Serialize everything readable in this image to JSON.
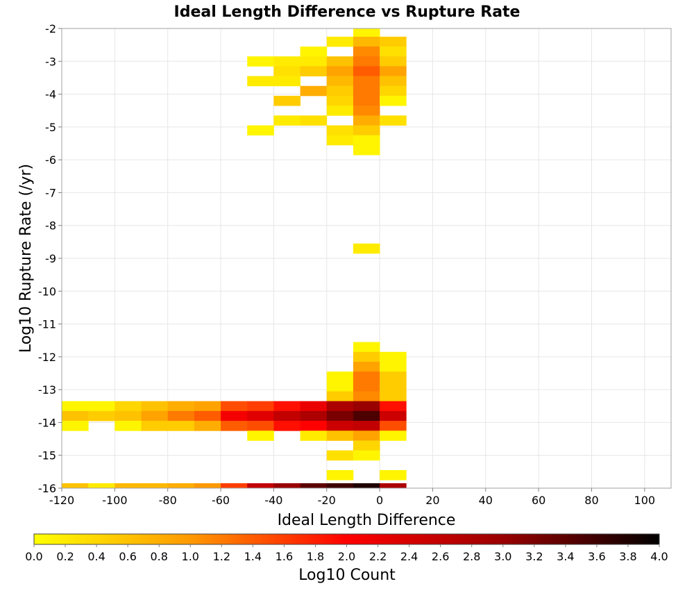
{
  "chart_data": {
    "type": "heatmap",
    "title": "Ideal Length Difference vs Rupture Rate",
    "xlabel": "Ideal Length Difference",
    "ylabel": "Log10 Rupture Rate (/yr)",
    "xlim": [
      -120,
      110
    ],
    "ylim": [
      -16,
      -2
    ],
    "x_ticks": [
      -120,
      -100,
      -80,
      -60,
      -40,
      -20,
      0,
      20,
      40,
      60,
      80,
      100
    ],
    "y_ticks": [
      -2,
      -3,
      -4,
      -5,
      -6,
      -7,
      -8,
      -9,
      -10,
      -11,
      -12,
      -13,
      -14,
      -15,
      -16
    ],
    "x_bin_width": 10,
    "y_bin_height": 0.3,
    "grid": true,
    "colorbar": {
      "label": "Log10 Count",
      "range": [
        0.0,
        4.0
      ],
      "ticks": [
        "0.0",
        "0.2",
        "0.4",
        "0.6",
        "0.8",
        "1.0",
        "1.2",
        "1.4",
        "1.6",
        "1.8",
        "2.0",
        "2.2",
        "2.4",
        "2.6",
        "2.8",
        "3.0",
        "3.2",
        "3.4",
        "3.6",
        "3.8",
        "4.0"
      ],
      "colors": [
        "#ffff00",
        "#ff9900",
        "#ff0000",
        "#990000",
        "#000000"
      ]
    },
    "cells": [
      {
        "x": -10,
        "y": -2.1,
        "v": 0.1
      },
      {
        "x": -20,
        "y": -2.4,
        "v": 0.2
      },
      {
        "x": -10,
        "y": -2.4,
        "v": 0.7
      },
      {
        "x": 0,
        "y": -2.4,
        "v": 0.5
      },
      {
        "x": -30,
        "y": -2.7,
        "v": 0.1
      },
      {
        "x": -10,
        "y": -2.7,
        "v": 1.1
      },
      {
        "x": 0,
        "y": -2.7,
        "v": 0.3
      },
      {
        "x": -50,
        "y": -3.0,
        "v": 0.1
      },
      {
        "x": -40,
        "y": -3.0,
        "v": 0.2
      },
      {
        "x": -30,
        "y": -3.0,
        "v": 0.2
      },
      {
        "x": -20,
        "y": -3.0,
        "v": 0.6
      },
      {
        "x": -10,
        "y": -3.0,
        "v": 1.2
      },
      {
        "x": 0,
        "y": -3.0,
        "v": 0.5
      },
      {
        "x": -40,
        "y": -3.3,
        "v": 0.3
      },
      {
        "x": -30,
        "y": -3.3,
        "v": 0.5
      },
      {
        "x": -20,
        "y": -3.3,
        "v": 0.9
      },
      {
        "x": -10,
        "y": -3.3,
        "v": 1.4
      },
      {
        "x": 0,
        "y": -3.3,
        "v": 0.9
      },
      {
        "x": -50,
        "y": -3.6,
        "v": 0.2
      },
      {
        "x": -40,
        "y": -3.6,
        "v": 0.2
      },
      {
        "x": -20,
        "y": -3.6,
        "v": 0.7
      },
      {
        "x": -10,
        "y": -3.6,
        "v": 1.2
      },
      {
        "x": 0,
        "y": -3.6,
        "v": 0.6
      },
      {
        "x": -30,
        "y": -3.9,
        "v": 0.8
      },
      {
        "x": -20,
        "y": -3.9,
        "v": 0.5
      },
      {
        "x": -10,
        "y": -3.9,
        "v": 1.2
      },
      {
        "x": 0,
        "y": -3.9,
        "v": 0.4
      },
      {
        "x": -40,
        "y": -4.2,
        "v": 0.5
      },
      {
        "x": -20,
        "y": -4.2,
        "v": 0.4
      },
      {
        "x": -10,
        "y": -4.2,
        "v": 1.2
      },
      {
        "x": 0,
        "y": -4.2,
        "v": 0.1
      },
      {
        "x": -20,
        "y": -4.5,
        "v": 0.2
      },
      {
        "x": -10,
        "y": -4.5,
        "v": 1.1
      },
      {
        "x": -40,
        "y": -4.8,
        "v": 0.2
      },
      {
        "x": -30,
        "y": -4.8,
        "v": 0.3
      },
      {
        "x": -10,
        "y": -4.8,
        "v": 0.8
      },
      {
        "x": 0,
        "y": -4.8,
        "v": 0.3
      },
      {
        "x": -50,
        "y": -5.1,
        "v": 0.1
      },
      {
        "x": -20,
        "y": -5.1,
        "v": 0.3
      },
      {
        "x": -10,
        "y": -5.1,
        "v": 0.5
      },
      {
        "x": -20,
        "y": -5.4,
        "v": 0.2
      },
      {
        "x": -10,
        "y": -5.4,
        "v": 0.1
      },
      {
        "x": -10,
        "y": -5.7,
        "v": 0.1
      },
      {
        "x": -10,
        "y": -8.7,
        "v": 0.2
      },
      {
        "x": -10,
        "y": -11.7,
        "v": 0.1
      },
      {
        "x": -10,
        "y": -12.0,
        "v": 0.5
      },
      {
        "x": 0,
        "y": -12.0,
        "v": 0.1
      },
      {
        "x": -10,
        "y": -12.3,
        "v": 0.9
      },
      {
        "x": 0,
        "y": -12.3,
        "v": 0.1
      },
      {
        "x": -20,
        "y": -12.6,
        "v": 0.1
      },
      {
        "x": -10,
        "y": -12.6,
        "v": 1.2
      },
      {
        "x": 0,
        "y": -12.6,
        "v": 0.5
      },
      {
        "x": -20,
        "y": -12.9,
        "v": 0.1
      },
      {
        "x": -10,
        "y": -12.9,
        "v": 1.2
      },
      {
        "x": 0,
        "y": -12.9,
        "v": 0.5
      },
      {
        "x": -20,
        "y": -13.2,
        "v": 0.5
      },
      {
        "x": -10,
        "y": -13.2,
        "v": 1.1
      },
      {
        "x": 0,
        "y": -13.2,
        "v": 0.5
      },
      {
        "x": -120,
        "y": -13.5,
        "v": 0.1
      },
      {
        "x": -110,
        "y": -13.5,
        "v": 0.1
      },
      {
        "x": -100,
        "y": -13.5,
        "v": 0.4
      },
      {
        "x": -90,
        "y": -13.5,
        "v": 0.6
      },
      {
        "x": -80,
        "y": -13.5,
        "v": 0.8
      },
      {
        "x": -70,
        "y": -13.5,
        "v": 0.9
      },
      {
        "x": -60,
        "y": -13.5,
        "v": 1.5
      },
      {
        "x": -50,
        "y": -13.5,
        "v": 1.6
      },
      {
        "x": -40,
        "y": -13.5,
        "v": 1.9
      },
      {
        "x": -30,
        "y": -13.5,
        "v": 2.2
      },
      {
        "x": -20,
        "y": -13.5,
        "v": 2.8
      },
      {
        "x": -10,
        "y": -13.5,
        "v": 3.0
      },
      {
        "x": 0,
        "y": -13.5,
        "v": 1.9
      },
      {
        "x": -120,
        "y": -13.8,
        "v": 0.6
      },
      {
        "x": -110,
        "y": -13.8,
        "v": 0.5
      },
      {
        "x": -100,
        "y": -13.8,
        "v": 0.6
      },
      {
        "x": -90,
        "y": -13.8,
        "v": 0.9
      },
      {
        "x": -80,
        "y": -13.8,
        "v": 1.2
      },
      {
        "x": -70,
        "y": -13.8,
        "v": 1.4
      },
      {
        "x": -60,
        "y": -13.8,
        "v": 2.1
      },
      {
        "x": -50,
        "y": -13.8,
        "v": 2.3
      },
      {
        "x": -40,
        "y": -13.8,
        "v": 2.6
      },
      {
        "x": -30,
        "y": -13.8,
        "v": 2.8
      },
      {
        "x": -20,
        "y": -13.8,
        "v": 3.2
      },
      {
        "x": -10,
        "y": -13.8,
        "v": 3.5
      },
      {
        "x": 0,
        "y": -13.8,
        "v": 2.5
      },
      {
        "x": -120,
        "y": -14.1,
        "v": 0.1
      },
      {
        "x": -100,
        "y": -14.1,
        "v": 0.1
      },
      {
        "x": -90,
        "y": -14.1,
        "v": 0.5
      },
      {
        "x": -80,
        "y": -14.1,
        "v": 0.5
      },
      {
        "x": -70,
        "y": -14.1,
        "v": 0.8
      },
      {
        "x": -60,
        "y": -14.1,
        "v": 1.4
      },
      {
        "x": -50,
        "y": -14.1,
        "v": 1.5
      },
      {
        "x": -40,
        "y": -14.1,
        "v": 1.9
      },
      {
        "x": -30,
        "y": -14.1,
        "v": 2.0
      },
      {
        "x": -20,
        "y": -14.1,
        "v": 2.5
      },
      {
        "x": -10,
        "y": -14.1,
        "v": 2.6
      },
      {
        "x": 0,
        "y": -14.1,
        "v": 1.5
      },
      {
        "x": -50,
        "y": -14.4,
        "v": 0.1
      },
      {
        "x": -30,
        "y": -14.4,
        "v": 0.2
      },
      {
        "x": -20,
        "y": -14.4,
        "v": 0.6
      },
      {
        "x": -10,
        "y": -14.4,
        "v": 0.9
      },
      {
        "x": 0,
        "y": -14.4,
        "v": 0.1
      },
      {
        "x": -10,
        "y": -14.7,
        "v": 0.4
      },
      {
        "x": -20,
        "y": -15.0,
        "v": 0.3
      },
      {
        "x": -10,
        "y": -15.0,
        "v": 0.1
      },
      {
        "x": -20,
        "y": -15.6,
        "v": 0.1
      },
      {
        "x": 0,
        "y": -15.6,
        "v": 0.1
      },
      {
        "x": -120,
        "y": -16.0,
        "v": 0.6
      },
      {
        "x": -110,
        "y": -16.0,
        "v": 0.2
      },
      {
        "x": -100,
        "y": -16.0,
        "v": 0.7
      },
      {
        "x": -90,
        "y": -16.0,
        "v": 0.7
      },
      {
        "x": -80,
        "y": -16.0,
        "v": 0.8
      },
      {
        "x": -70,
        "y": -16.0,
        "v": 1.0
      },
      {
        "x": -60,
        "y": -16.0,
        "v": 1.6
      },
      {
        "x": -50,
        "y": -16.0,
        "v": 2.6
      },
      {
        "x": -40,
        "y": -16.0,
        "v": 3.0
      },
      {
        "x": -30,
        "y": -16.0,
        "v": 3.4
      },
      {
        "x": -20,
        "y": -16.0,
        "v": 3.6
      },
      {
        "x": -10,
        "y": -16.0,
        "v": 3.8
      },
      {
        "x": 0,
        "y": -16.0,
        "v": 2.8
      }
    ]
  }
}
